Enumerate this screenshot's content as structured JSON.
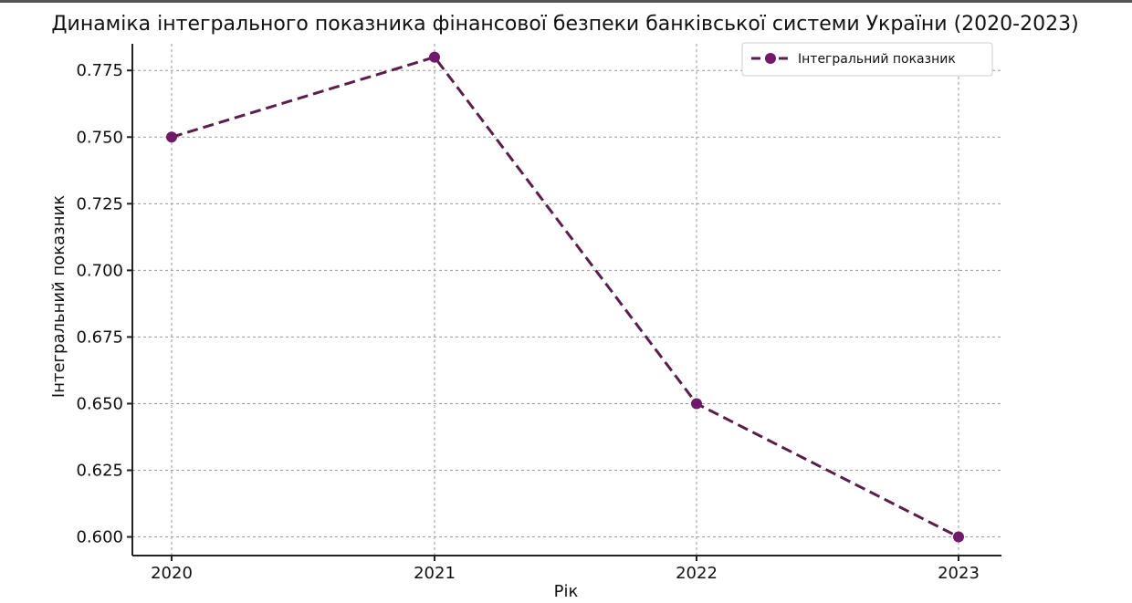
{
  "chart_data": {
    "type": "line",
    "title": "Динаміка інтегрального показника фінансової безпеки банківської системи України (2020-2023)",
    "xlabel": "Рік",
    "ylabel": "Інтегральний показник",
    "x": [
      "2020",
      "2021",
      "2022",
      "2023"
    ],
    "series": [
      {
        "name": "Інтегральний показник",
        "values": [
          0.75,
          0.78,
          0.65,
          0.6
        ],
        "color": "#5a1e4a",
        "marker_color": "#6f1a6b",
        "line_style": "dashed",
        "marker": "circle"
      }
    ],
    "yticks": [
      "0.600",
      "0.625",
      "0.650",
      "0.675",
      "0.700",
      "0.725",
      "0.750",
      "0.775"
    ],
    "ylim": [
      0.593,
      0.785
    ],
    "grid": true,
    "legend": "top-right"
  }
}
